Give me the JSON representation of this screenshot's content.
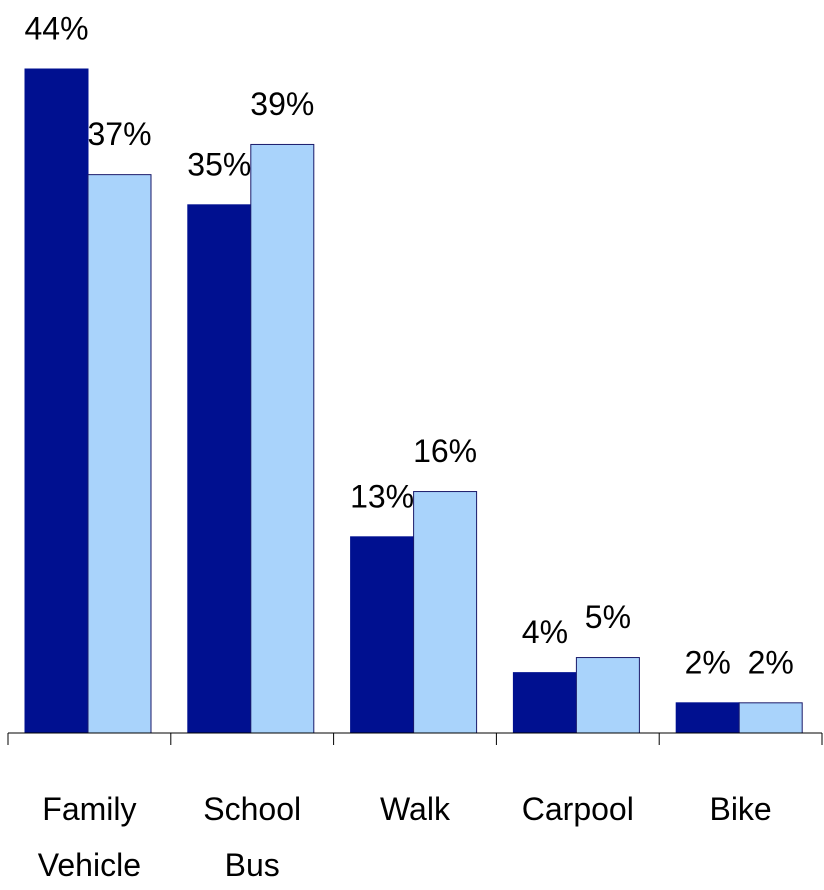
{
  "chart_data": {
    "type": "bar",
    "categories": [
      "Family Vehicle",
      "School Bus",
      "Walk",
      "Carpool",
      "Bike"
    ],
    "series": [
      {
        "color": "#001090",
        "values": [
          44,
          35,
          13,
          4,
          2
        ],
        "value_labels": [
          "44%",
          "35%",
          "13%",
          "4%",
          "2%"
        ]
      },
      {
        "color": "#a9d3fb",
        "values": [
          37,
          39,
          16,
          5,
          2
        ],
        "value_labels": [
          "37%",
          "39%",
          "16%",
          "5%",
          "2%"
        ]
      }
    ]
  }
}
